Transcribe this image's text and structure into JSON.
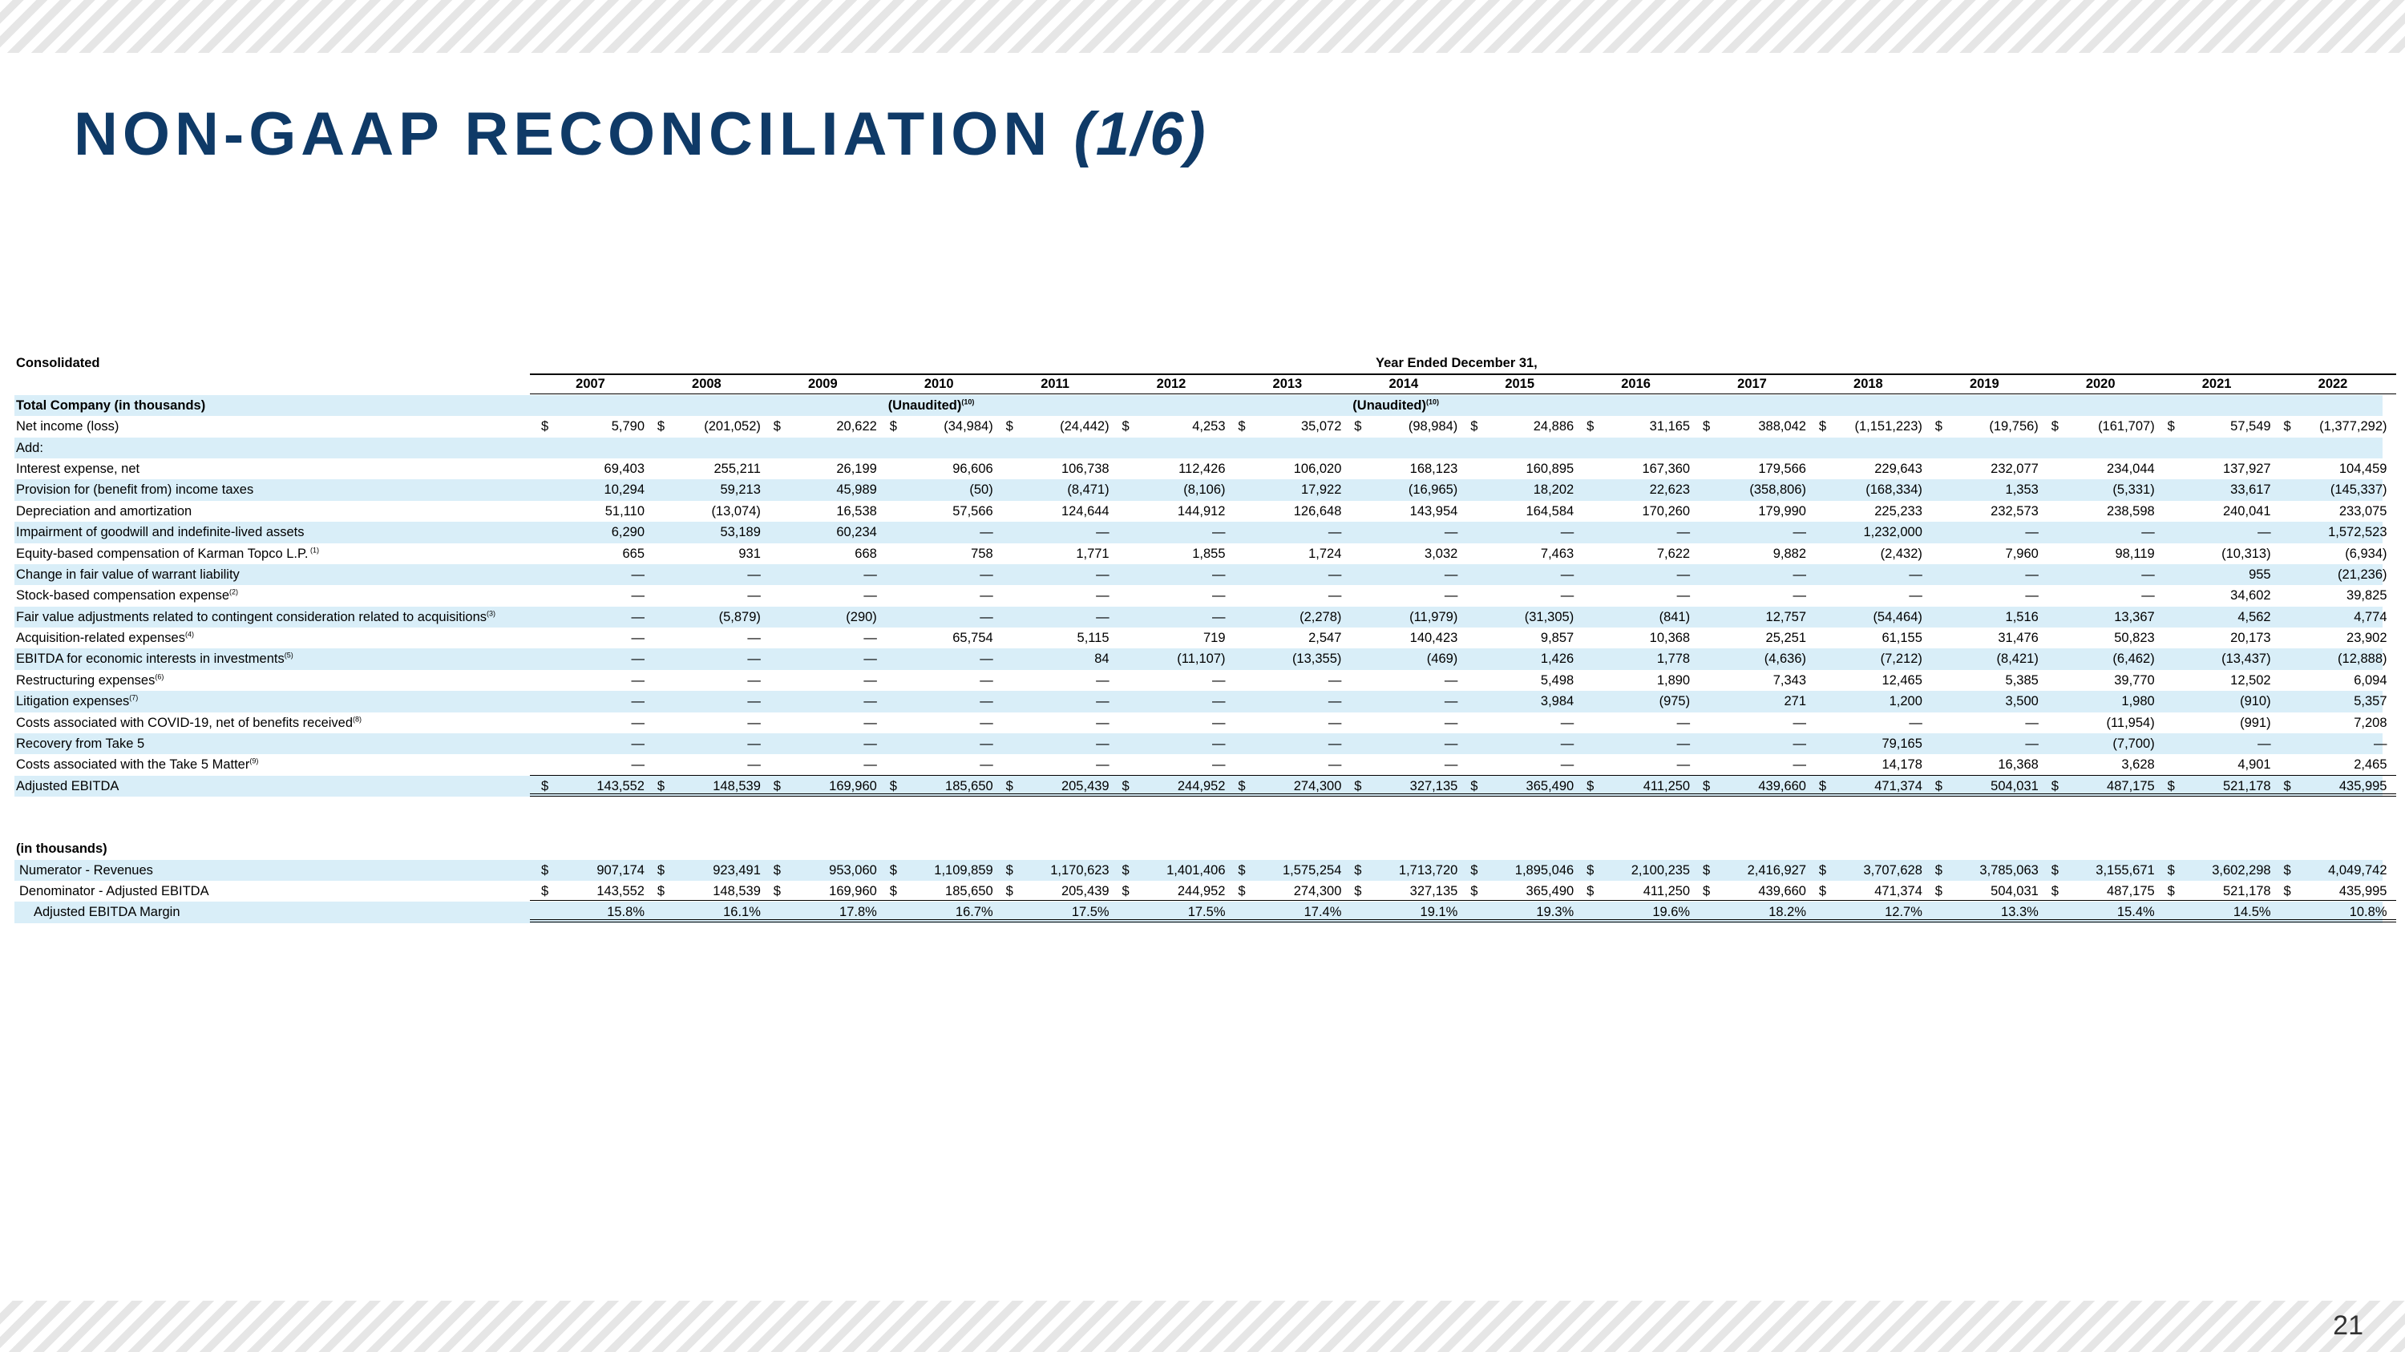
{
  "slide": {
    "title": "NON-GAAP RECONCILIATION",
    "title_part": "(1/6)",
    "page_number": "21"
  },
  "table": {
    "section_label": "Consolidated",
    "period_header": "Year Ended December 31,",
    "years": [
      "2007",
      "2008",
      "2009",
      "2010",
      "2011",
      "2012",
      "2013",
      "2014",
      "2015",
      "2016",
      "2017",
      "2018",
      "2019",
      "2020",
      "2021",
      "2022"
    ],
    "subheader_label": "Total Company (in thousands)",
    "unaudited_2010": "(Unaudited)",
    "unaudited_2010_sup": "(10)",
    "unaudited_2014": "(Unaudited)",
    "unaudited_2014_sup": "(10)",
    "net_income": {
      "label": "Net income (loss)",
      "values": [
        "5,790",
        "(201,052)",
        "20,622",
        "(34,984)",
        "(24,442)",
        "4,253",
        "35,072",
        "(98,984)",
        "24,886",
        "31,165",
        "388,042",
        "(1,151,223)",
        "(19,756)",
        "(161,707)",
        "57,549",
        "(1,377,292)"
      ]
    },
    "add_label": "Add:",
    "rows": [
      {
        "label": "Interest expense, net",
        "sup": "",
        "values": [
          "69,403",
          "255,211",
          "26,199",
          "96,606",
          "106,738",
          "112,426",
          "106,020",
          "168,123",
          "160,895",
          "167,360",
          "179,566",
          "229,643",
          "232,077",
          "234,044",
          "137,927",
          "104,459"
        ]
      },
      {
        "label": "Provision for (benefit from) income taxes",
        "sup": "",
        "values": [
          "10,294",
          "59,213",
          "45,989",
          "(50)",
          "(8,471)",
          "(8,106)",
          "17,922",
          "(16,965)",
          "18,202",
          "22,623",
          "(358,806)",
          "(168,334)",
          "1,353",
          "(5,331)",
          "33,617",
          "(145,337)"
        ]
      },
      {
        "label": "Depreciation and amortization",
        "sup": "",
        "values": [
          "51,110",
          "(13,074)",
          "16,538",
          "57,566",
          "124,644",
          "144,912",
          "126,648",
          "143,954",
          "164,584",
          "170,260",
          "179,990",
          "225,233",
          "232,573",
          "238,598",
          "240,041",
          "233,075"
        ]
      },
      {
        "label": "Impairment of goodwill and indefinite-lived assets",
        "sup": "",
        "values": [
          "6,290",
          "53,189",
          "60,234",
          "—",
          "—",
          "—",
          "—",
          "—",
          "—",
          "—",
          "—",
          "1,232,000",
          "—",
          "—",
          "—",
          "1,572,523"
        ]
      },
      {
        "label": "Equity-based compensation of Karman Topco L.P.",
        "sup": " (1)",
        "values": [
          "665",
          "931",
          "668",
          "758",
          "1,771",
          "1,855",
          "1,724",
          "3,032",
          "7,463",
          "7,622",
          "9,882",
          "(2,432)",
          "7,960",
          "98,119",
          "(10,313)",
          "(6,934)"
        ]
      },
      {
        "label": "Change in fair value of warrant liability",
        "sup": "",
        "values": [
          "—",
          "—",
          "—",
          "—",
          "—",
          "—",
          "—",
          "—",
          "—",
          "—",
          "—",
          "—",
          "—",
          "—",
          "955",
          "(21,236)"
        ]
      },
      {
        "label": "Stock-based compensation expense",
        "sup": "(2)",
        "values": [
          "—",
          "—",
          "—",
          "—",
          "—",
          "—",
          "—",
          "—",
          "—",
          "—",
          "—",
          "—",
          "—",
          "—",
          "34,602",
          "39,825"
        ]
      },
      {
        "label": "Fair value adjustments related to contingent consideration related to acquisitions",
        "sup": "(3)",
        "values": [
          "—",
          "(5,879)",
          "(290)",
          "—",
          "—",
          "—",
          "(2,278)",
          "(11,979)",
          "(31,305)",
          "(841)",
          "12,757",
          "(54,464)",
          "1,516",
          "13,367",
          "4,562",
          "4,774"
        ]
      },
      {
        "label": "Acquisition-related expenses",
        "sup": "(4)",
        "values": [
          "—",
          "—",
          "—",
          "65,754",
          "5,115",
          "719",
          "2,547",
          "140,423",
          "9,857",
          "10,368",
          "25,251",
          "61,155",
          "31,476",
          "50,823",
          "20,173",
          "23,902"
        ]
      },
      {
        "label": "EBITDA for economic interests in investments",
        "sup": "(5)",
        "values": [
          "—",
          "—",
          "—",
          "—",
          "84",
          "(11,107)",
          "(13,355)",
          "(469)",
          "1,426",
          "1,778",
          "(4,636)",
          "(7,212)",
          "(8,421)",
          "(6,462)",
          "(13,437)",
          "(12,888)"
        ]
      },
      {
        "label": "Restructuring expenses",
        "sup": "(6)",
        "values": [
          "—",
          "—",
          "—",
          "—",
          "—",
          "—",
          "—",
          "—",
          "5,498",
          "1,890",
          "7,343",
          "12,465",
          "5,385",
          "39,770",
          "12,502",
          "6,094"
        ]
      },
      {
        "label": "Litigation expenses",
        "sup": "(7)",
        "values": [
          "—",
          "—",
          "—",
          "—",
          "—",
          "—",
          "—",
          "—",
          "3,984",
          "(975)",
          "271",
          "1,200",
          "3,500",
          "1,980",
          "(910)",
          "5,357"
        ]
      },
      {
        "label": "Costs associated with COVID-19, net of benefits received",
        "sup": "(8)",
        "values": [
          "—",
          "—",
          "—",
          "—",
          "—",
          "—",
          "—",
          "—",
          "—",
          "—",
          "—",
          "—",
          "—",
          "(11,954)",
          "(991)",
          "7,208"
        ]
      },
      {
        "label": "Recovery from Take 5",
        "sup": "",
        "values": [
          "—",
          "—",
          "—",
          "—",
          "—",
          "—",
          "—",
          "—",
          "—",
          "—",
          "—",
          "79,165",
          "—",
          "(7,700)",
          "—",
          "—"
        ]
      },
      {
        "label": "Costs associated with the Take 5 Matter",
        "sup": "(9)",
        "values": [
          "—",
          "—",
          "—",
          "—",
          "—",
          "—",
          "—",
          "—",
          "—",
          "—",
          "—",
          "14,178",
          "16,368",
          "3,628",
          "4,901",
          "2,465"
        ]
      }
    ],
    "adjusted_ebitda": {
      "label": "Adjusted EBITDA",
      "values": [
        "143,552",
        "148,539",
        "169,960",
        "185,650",
        "205,439",
        "244,952",
        "274,300",
        "327,135",
        "365,490",
        "411,250",
        "439,660",
        "471,374",
        "504,031",
        "487,175",
        "521,178",
        "435,995"
      ]
    },
    "margin_section_label": "(in thousands)",
    "revenues": {
      "label": "Numerator - Revenues",
      "values": [
        "907,174",
        "923,491",
        "953,060",
        "1,109,859",
        "1,170,623",
        "1,401,406",
        "1,575,254",
        "1,713,720",
        "1,895,046",
        "2,100,235",
        "2,416,927",
        "3,707,628",
        "3,785,063",
        "3,155,671",
        "3,602,298",
        "4,049,742"
      ]
    },
    "denominator": {
      "label": "Denominator - Adjusted EBITDA",
      "values": [
        "143,552",
        "148,539",
        "169,960",
        "185,650",
        "205,439",
        "244,952",
        "274,300",
        "327,135",
        "365,490",
        "411,250",
        "439,660",
        "471,374",
        "504,031",
        "487,175",
        "521,178",
        "435,995"
      ]
    },
    "margin": {
      "label": "Adjusted EBITDA Margin",
      "values": [
        "15.8%",
        "16.1%",
        "17.8%",
        "16.7%",
        "17.5%",
        "17.5%",
        "17.4%",
        "19.1%",
        "19.3%",
        "19.6%",
        "18.2%",
        "12.7%",
        "13.3%",
        "15.4%",
        "14.5%",
        "10.8%"
      ]
    },
    "currency_symbol": "$"
  }
}
